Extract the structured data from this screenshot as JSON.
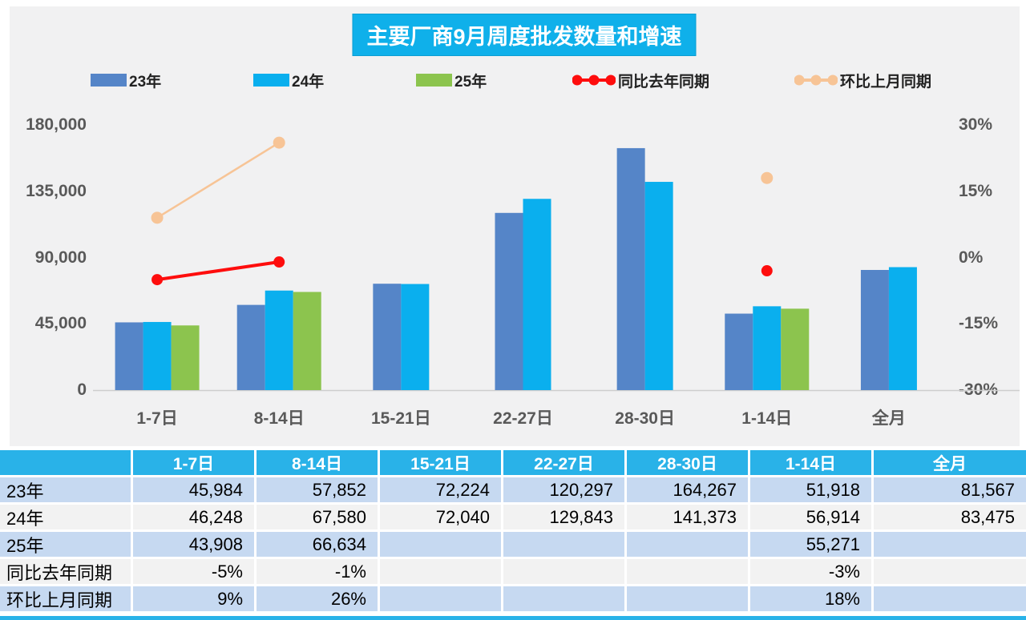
{
  "title": "主要厂商9月周度批发数量和增速",
  "colors": {
    "blue": "#5585C8",
    "cyan": "#0AAFEE",
    "green": "#8CC44E",
    "red": "#FE0D0D",
    "peach": "#F7C496",
    "title_bg": "#0FB0EA",
    "header_bg": "#29B2E8",
    "row_blue": "#C6D9F1",
    "row_gray": "#F2F2F2",
    "axis_text": "#595959",
    "panel_bg": "#F1F1F2"
  },
  "legend": {
    "items": [
      {
        "label": "23年",
        "glyph": "bar",
        "color": "blue"
      },
      {
        "label": "24年",
        "glyph": "bar",
        "color": "cyan"
      },
      {
        "label": "25年",
        "glyph": "bar",
        "color": "green"
      },
      {
        "label": "同比去年同期",
        "glyph": "line",
        "color": "red"
      },
      {
        "label": "环比上月同期",
        "glyph": "line",
        "color": "peach"
      }
    ]
  },
  "chart_data": {
    "type": "bar+line",
    "title": "主要厂商9月周度批发数量和增速",
    "categories": [
      "1-7日",
      "8-14日",
      "15-21日",
      "22-27日",
      "28-30日",
      "1-14日",
      "全月"
    ],
    "left_axis": {
      "min": 0,
      "max": 180000,
      "ticks": [
        180000,
        135000,
        90000,
        45000,
        0
      ],
      "tick_labels": [
        "180,000",
        "135,000",
        "90,000",
        "45,000",
        "0"
      ]
    },
    "right_axis": {
      "min": -30,
      "max": 30,
      "ticks": [
        30,
        15,
        0,
        -15,
        -30
      ],
      "tick_labels": [
        "30%",
        "15%",
        "0%",
        "-15%",
        "-30%"
      ]
    },
    "grid": "off",
    "legend_position": "top",
    "series": [
      {
        "name": "23年",
        "type": "bar",
        "axis": "left",
        "color": "blue",
        "values": [
          45984,
          57852,
          72224,
          120297,
          164267,
          51918,
          81567
        ]
      },
      {
        "name": "24年",
        "type": "bar",
        "axis": "left",
        "color": "cyan",
        "values": [
          46248,
          67580,
          72040,
          129843,
          141373,
          56914,
          83475
        ]
      },
      {
        "name": "25年",
        "type": "bar",
        "axis": "left",
        "color": "green",
        "values": [
          43908,
          66634,
          null,
          null,
          null,
          55271,
          null
        ]
      },
      {
        "name": "同比去年同期",
        "type": "line",
        "axis": "right",
        "color": "red",
        "values": [
          -5,
          -1,
          null,
          null,
          null,
          -3,
          null
        ]
      },
      {
        "name": "环比上月同期",
        "type": "line",
        "axis": "right",
        "color": "peach",
        "values": [
          9,
          26,
          null,
          null,
          null,
          18,
          null
        ]
      }
    ]
  },
  "table": {
    "header": [
      "",
      "1-7日",
      "8-14日",
      "15-21日",
      "22-27日",
      "28-30日",
      "1-14日",
      "全月"
    ],
    "rows": [
      {
        "label": "23年",
        "cells": [
          "45,984",
          "57,852",
          "72,224",
          "120,297",
          "164,267",
          "51,918",
          "81,567"
        ]
      },
      {
        "label": "24年",
        "cells": [
          "46,248",
          "67,580",
          "72,040",
          "129,843",
          "141,373",
          "56,914",
          "83,475"
        ]
      },
      {
        "label": "25年",
        "cells": [
          "43,908",
          "66,634",
          "",
          "",
          "",
          "55,271",
          ""
        ]
      },
      {
        "label": "同比去年同期",
        "cells": [
          "-5%",
          "-1%",
          "",
          "",
          "",
          "-3%",
          ""
        ]
      },
      {
        "label": "环比上月同期",
        "cells": [
          "9%",
          "26%",
          "",
          "",
          "",
          "18%",
          ""
        ]
      }
    ]
  }
}
